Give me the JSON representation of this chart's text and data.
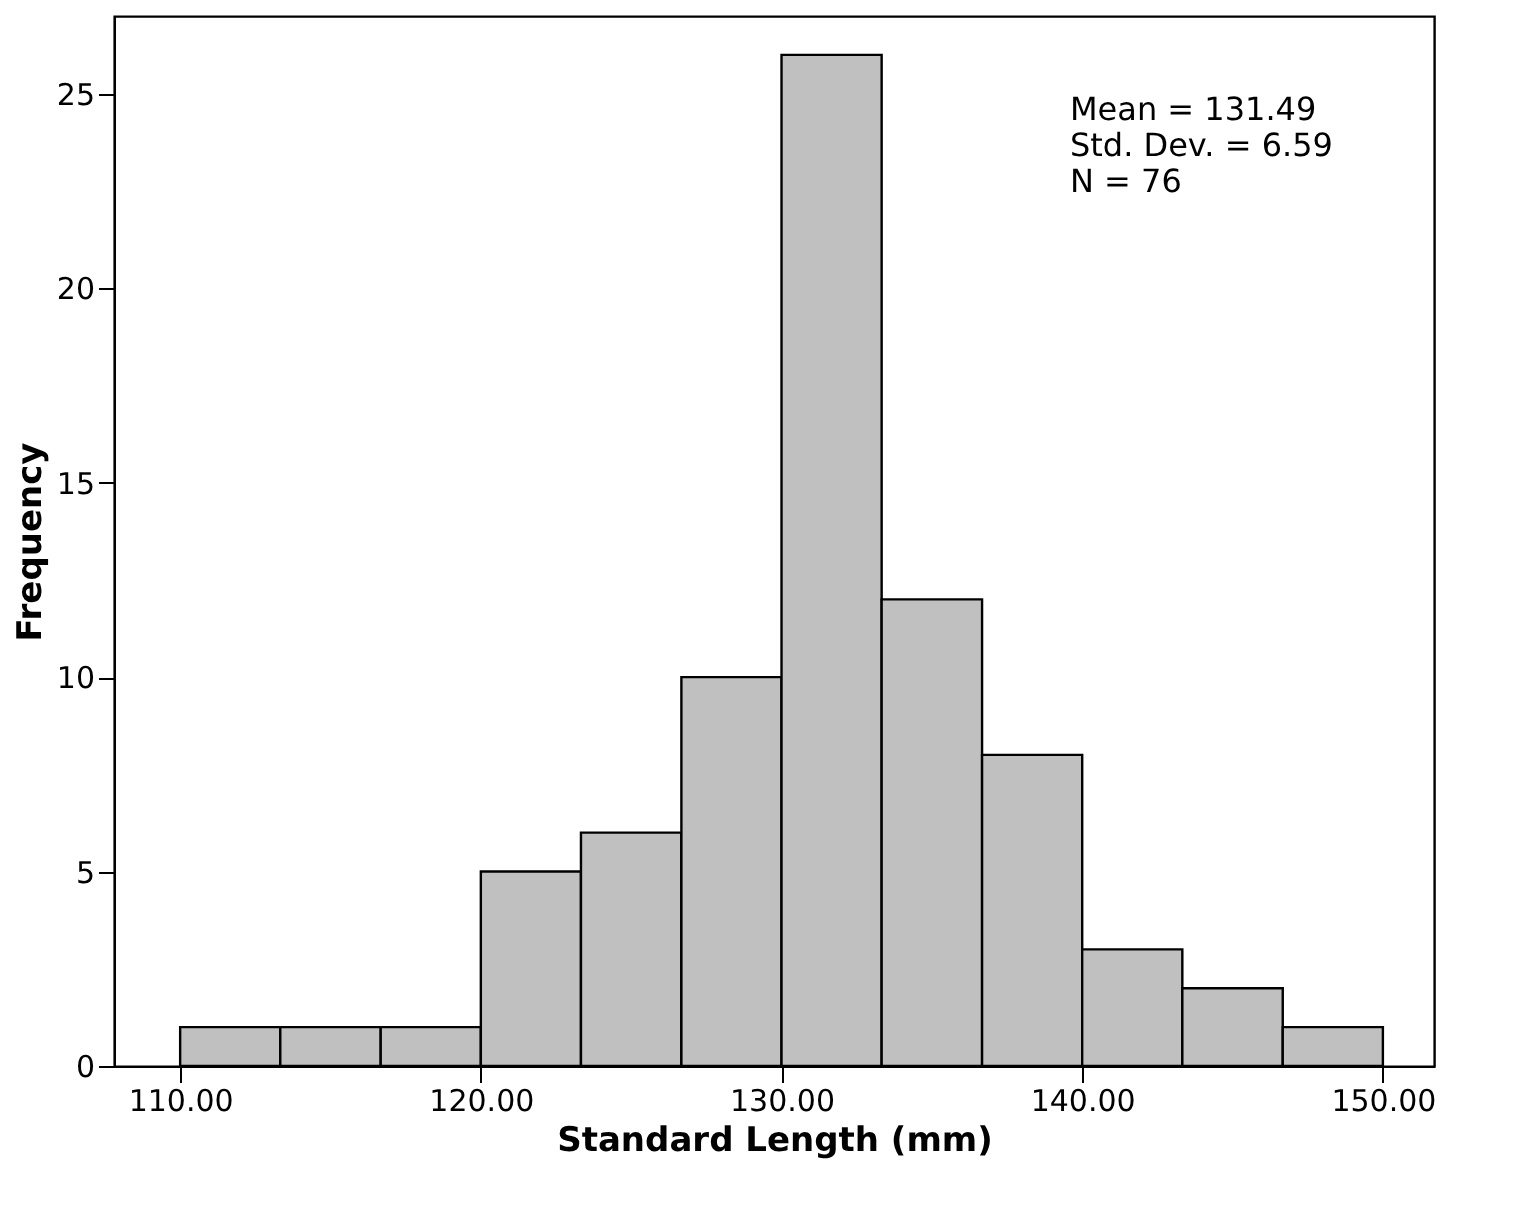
{
  "chart_data": {
    "type": "histogram",
    "bins": [
      110,
      113.33,
      116.67,
      120,
      123.33,
      126.67,
      130,
      133.33,
      136.67,
      140,
      143.33,
      146.67,
      150
    ],
    "values": [
      1,
      1,
      1,
      5,
      6,
      10,
      26,
      12,
      8,
      3,
      2,
      1
    ],
    "color": "#c0c0c0",
    "xlabel": "Standard Length (mm)",
    "ylabel": "Frequency",
    "xlim": [
      107.8,
      151.7
    ],
    "ylim": [
      0,
      27
    ],
    "xticks": [
      {
        "value": 110,
        "label": "110.00"
      },
      {
        "value": 120,
        "label": "120.00"
      },
      {
        "value": 130,
        "label": "130.00"
      },
      {
        "value": 140,
        "label": "140.00"
      },
      {
        "value": 150,
        "label": "150.00"
      }
    ],
    "yticks": [
      0,
      5,
      10,
      15,
      20,
      25
    ],
    "grid": false,
    "annotations": [
      "Mean = 131.49",
      "Std. Dev. = 6.59",
      "N = 76"
    ]
  }
}
